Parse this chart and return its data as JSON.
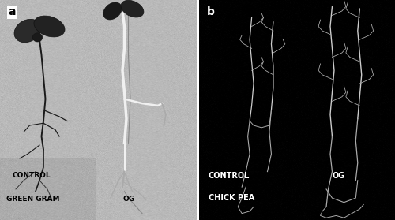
{
  "fig_width": 5.0,
  "fig_height": 2.79,
  "dpi": 100,
  "panel_a": {
    "label": "a",
    "bg_gray": 185,
    "text_control": "CONTROL",
    "text_species": "GREEN GRAM",
    "text_og": "OG",
    "text_color": "black",
    "label_color": "black"
  },
  "panel_b": {
    "label": "b",
    "bg_gray": 5,
    "text_control": "CONTROL",
    "text_species": "CHICK PEA",
    "text_og": "OG",
    "text_color": "white",
    "label_color": "white"
  },
  "font_size_label": 10,
  "font_size_text": 6.5,
  "font_size_text_b": 7
}
